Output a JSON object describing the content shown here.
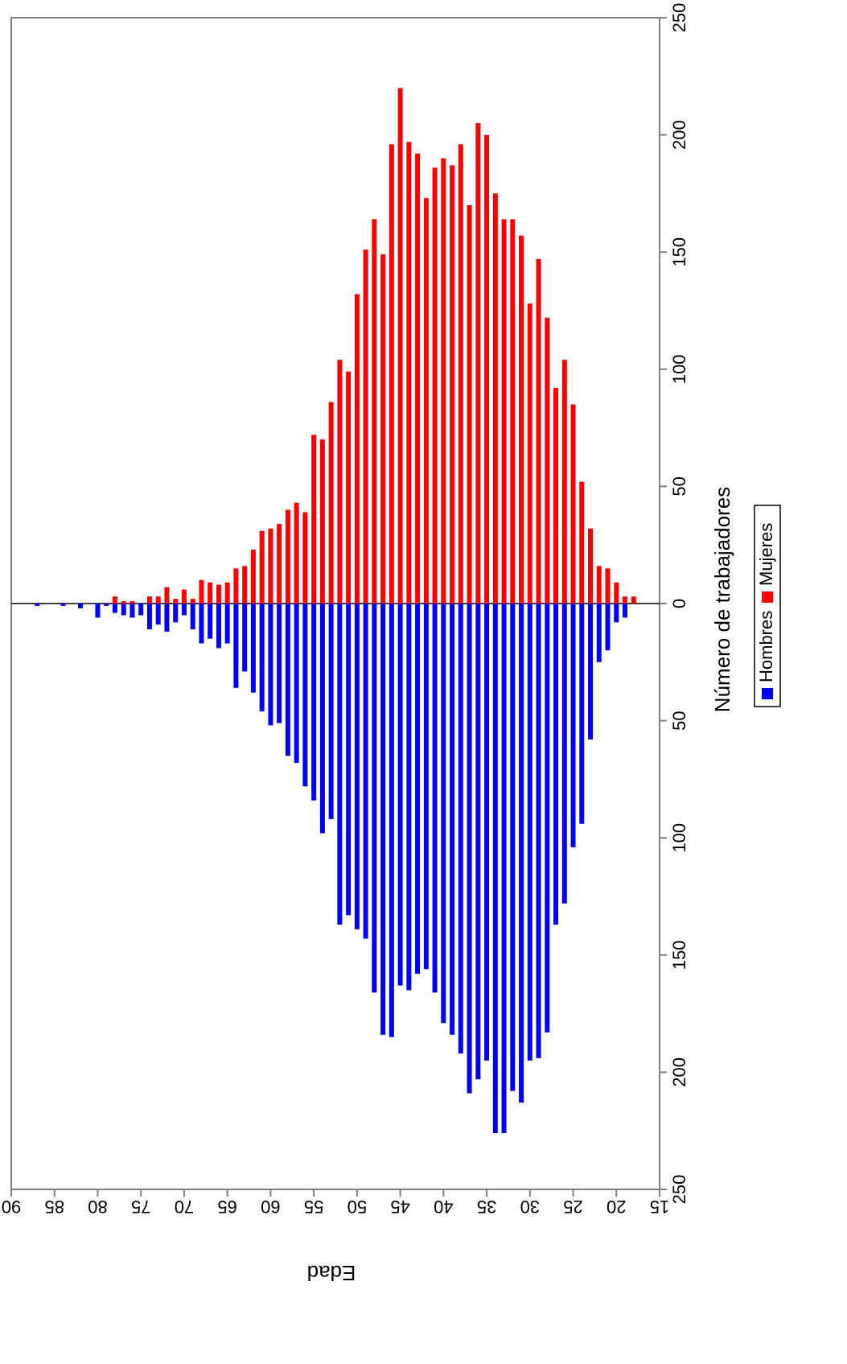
{
  "chart_data": {
    "type": "pyramid",
    "xlabel": "Edad",
    "ylabel": "Número de trabajadores",
    "x": [
      18,
      19,
      20,
      21,
      22,
      23,
      24,
      25,
      26,
      27,
      28,
      29,
      30,
      31,
      32,
      33,
      34,
      35,
      36,
      37,
      38,
      39,
      40,
      41,
      42,
      43,
      44,
      45,
      46,
      47,
      48,
      49,
      50,
      51,
      52,
      53,
      54,
      55,
      56,
      57,
      58,
      59,
      60,
      61,
      62,
      63,
      64,
      65,
      66,
      67,
      68,
      69,
      70,
      71,
      72,
      73,
      74,
      75,
      76,
      77,
      78,
      79,
      80,
      81,
      82,
      83,
      84,
      85,
      86,
      87
    ],
    "series": [
      {
        "name": "Hombres",
        "color": "#0000ff",
        "values": [
          0,
          6,
          8,
          20,
          25,
          58,
          94,
          104,
          128,
          137,
          183,
          194,
          195,
          213,
          208,
          226,
          226,
          195,
          203,
          209,
          192,
          184,
          179,
          166,
          156,
          158,
          165,
          163,
          185,
          184,
          166,
          143,
          139,
          133,
          137,
          92,
          98,
          84,
          78,
          68,
          65,
          51,
          52,
          46,
          38,
          29,
          36,
          17,
          19,
          15,
          17,
          11,
          5,
          8,
          12,
          9,
          11,
          5,
          6,
          5,
          4,
          1,
          6,
          0,
          2,
          0,
          1,
          0,
          0,
          1
        ]
      },
      {
        "name": "Mujeres",
        "color": "#ff0000",
        "values": [
          3,
          3,
          9,
          15,
          16,
          32,
          52,
          85,
          104,
          92,
          122,
          147,
          128,
          157,
          164,
          164,
          175,
          200,
          205,
          170,
          196,
          187,
          190,
          186,
          173,
          192,
          197,
          220,
          196,
          149,
          164,
          151,
          132,
          99,
          104,
          86,
          70,
          72,
          39,
          43,
          40,
          34,
          32,
          31,
          23,
          16,
          15,
          9,
          8,
          9,
          10,
          2,
          6,
          2,
          7,
          3,
          3,
          0,
          1,
          1,
          3,
          0,
          0,
          0,
          0,
          0,
          0,
          0,
          0,
          0
        ]
      }
    ],
    "xlim": [
      90,
      15
    ],
    "xticks": [
      90,
      85,
      80,
      75,
      70,
      65,
      60,
      55,
      50,
      45,
      40,
      35,
      30,
      25,
      20,
      15
    ],
    "ylim": [
      -250,
      250
    ],
    "yticks": [
      {
        "value": -250,
        "label": "250"
      },
      {
        "value": -200,
        "label": "200"
      },
      {
        "value": -150,
        "label": "150"
      },
      {
        "value": -100,
        "label": "100"
      },
      {
        "value": -50,
        "label": "50"
      },
      0,
      50,
      100,
      150,
      200,
      250
    ]
  }
}
